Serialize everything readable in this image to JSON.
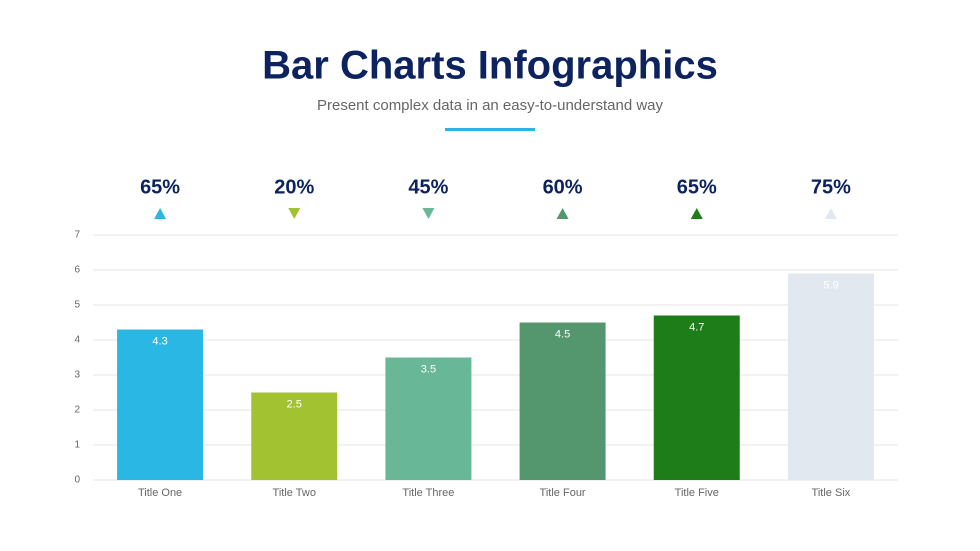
{
  "chart_data": {
    "type": "bar",
    "title": "Bar Charts Infographics",
    "subtitle": "Present complex data in an easy-to-understand way",
    "categories": [
      "Title One",
      "Title Two",
      "Title Three",
      "Title Four",
      "Title Five",
      "Title Six"
    ],
    "values": [
      4.3,
      2.5,
      3.5,
      4.5,
      4.7,
      5.9
    ],
    "colors": [
      "#2bb7e3",
      "#a3c232",
      "#68b898",
      "#54976e",
      "#1e7d19",
      "#e1e8ef"
    ],
    "indicators": [
      {
        "label": "65%",
        "direction": "up"
      },
      {
        "label": "20%",
        "direction": "down"
      },
      {
        "label": "45%",
        "direction": "down"
      },
      {
        "label": "60%",
        "direction": "up"
      },
      {
        "label": "65%",
        "direction": "up"
      },
      {
        "label": "75%",
        "direction": "up"
      }
    ],
    "ylim": [
      0,
      7
    ],
    "yticks": [
      0,
      1,
      2,
      3,
      4,
      5,
      6,
      7
    ],
    "grid": true
  }
}
